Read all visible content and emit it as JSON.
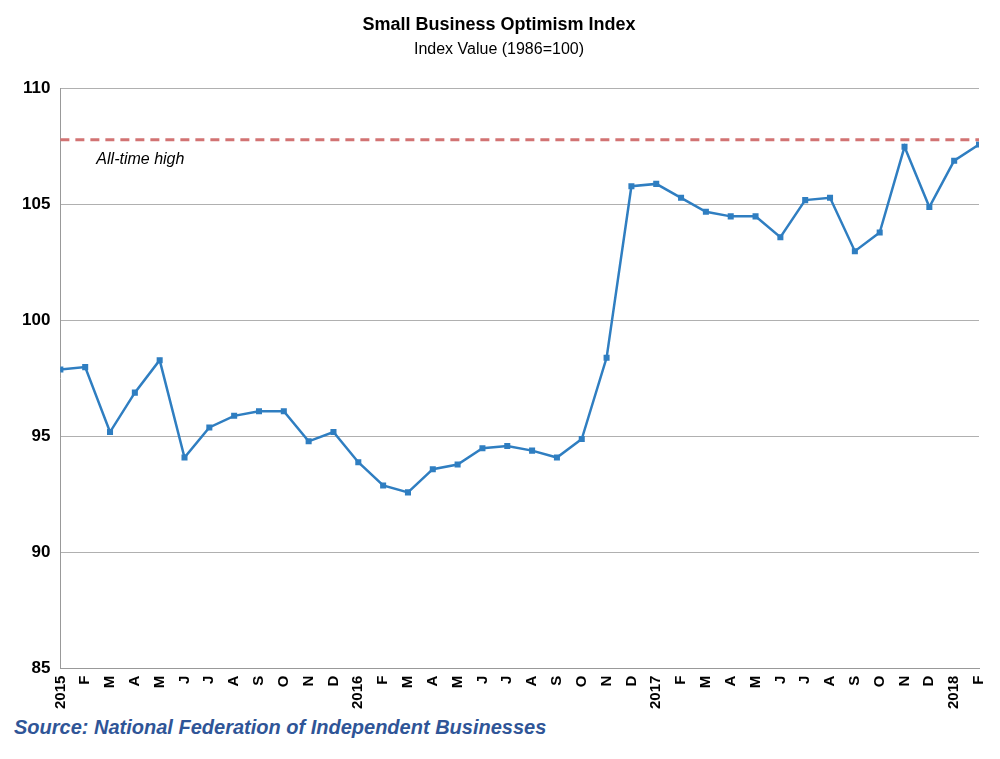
{
  "chart_data": {
    "type": "line",
    "title": "Small Business Optimism Index",
    "subtitle": "Index Value (1986=100)",
    "source": "Source: National Federation of Independent Businesses",
    "categories": [
      "2015",
      "F",
      "M",
      "A",
      "M",
      "J",
      "J",
      "A",
      "S",
      "O",
      "N",
      "D",
      "2016",
      "F",
      "M",
      "A",
      "M",
      "J",
      "J",
      "A",
      "S",
      "O",
      "N",
      "D",
      "2017",
      "F",
      "M",
      "A",
      "M",
      "J",
      "J",
      "A",
      "S",
      "O",
      "N",
      "D",
      "2018",
      "F"
    ],
    "values": [
      97.9,
      98.0,
      95.2,
      96.9,
      98.3,
      94.1,
      95.4,
      95.9,
      96.1,
      96.1,
      94.8,
      95.2,
      93.9,
      92.9,
      92.6,
      93.6,
      93.8,
      94.5,
      94.6,
      94.4,
      94.1,
      94.9,
      98.4,
      105.8,
      105.9,
      105.3,
      104.7,
      104.5,
      104.5,
      103.6,
      105.2,
      105.3,
      103.0,
      103.8,
      107.5,
      104.9,
      106.9,
      107.6
    ],
    "color": "#2f7ec1",
    "marker": "square",
    "ylim": [
      85,
      110
    ],
    "yticks": [
      85,
      90,
      95,
      100,
      105,
      110
    ],
    "grid": true,
    "annotations": [
      {
        "type": "hline",
        "value": 107.8,
        "label": "All-time high",
        "color": "#d27373",
        "line_style": "dashed"
      }
    ]
  }
}
